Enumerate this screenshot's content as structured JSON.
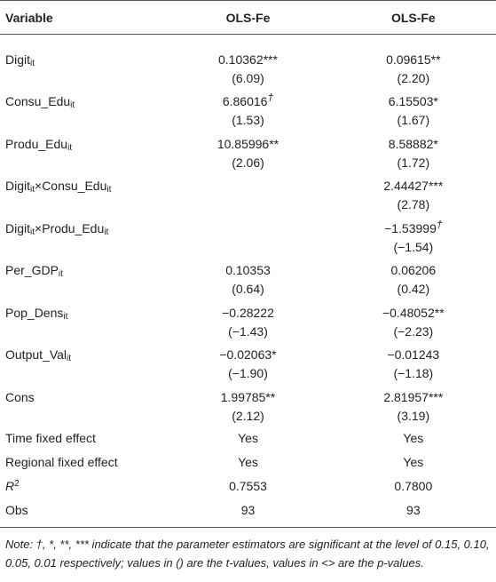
{
  "table": {
    "columns": [
      "Variable",
      "OLS-Fe",
      "OLS-Fe"
    ],
    "rows": [
      {
        "label": [
          {
            "t": "Digit",
            "sub": "it"
          }
        ],
        "c1": {
          "coef": "0.10362",
          "sig": "***",
          "t": "(6.09)"
        },
        "c2": {
          "coef": "0.09615",
          "sig": "**",
          "t": "(2.20)"
        }
      },
      {
        "label": [
          {
            "t": "Consu_Edu",
            "sub": "it"
          }
        ],
        "c1": {
          "coef": "6.86016",
          "dag": "†",
          "t": "(1.53)"
        },
        "c2": {
          "coef": "6.15503",
          "sig": "*",
          "t": "(1.67)"
        }
      },
      {
        "label": [
          {
            "t": "Produ_Edu",
            "sub": "it"
          }
        ],
        "c1": {
          "coef": "10.85996",
          "sig": "**",
          "t": "(2.06)"
        },
        "c2": {
          "coef": "8.58882",
          "sig": "*",
          "t": "(1.72)"
        }
      },
      {
        "label": [
          {
            "t": "Digit",
            "sub": "it"
          },
          {
            "t": "×Consu_Edu",
            "sub": "it"
          }
        ],
        "c1": null,
        "c2": {
          "coef": "2.44427",
          "sig": "***",
          "t": "(2.78)"
        }
      },
      {
        "label": [
          {
            "t": "Digit",
            "sub": "it"
          },
          {
            "t": "×Produ_Edu",
            "sub": "it"
          }
        ],
        "c1": null,
        "c2": {
          "coef": "−1.53999",
          "dag": "†",
          "t": "(−1.54)"
        }
      },
      {
        "label": [
          {
            "t": "Per_GDP",
            "sub": "it"
          }
        ],
        "c1": {
          "coef": "0.10353",
          "t": "(0.64)"
        },
        "c2": {
          "coef": "0.06206",
          "t": "(0.42)"
        }
      },
      {
        "label": [
          {
            "t": "Pop_Dens",
            "sub": "it"
          }
        ],
        "c1": {
          "coef": "−0.28222",
          "t": "(−1.43)"
        },
        "c2": {
          "coef": "−0.48052",
          "sig": "**",
          "t": "(−2.23)"
        }
      },
      {
        "label": [
          {
            "t": "Output_Val",
            "sub": "it"
          }
        ],
        "c1": {
          "coef": "−0.02063",
          "sig": "*",
          "t": "(−1.90)"
        },
        "c2": {
          "coef": "−0.01243",
          "t": "(−1.18)"
        }
      },
      {
        "label": [
          {
            "t": "Cons"
          }
        ],
        "c1": {
          "coef": "1.99785",
          "sig": "**",
          "t": "(2.12)"
        },
        "c2": {
          "coef": "2.81957",
          "sig": "***",
          "t": "(3.19)"
        }
      },
      {
        "label": [
          {
            "t": "Time fixed effect"
          }
        ],
        "c1": {
          "coef": "Yes"
        },
        "c2": {
          "coef": "Yes"
        }
      },
      {
        "label": [
          {
            "t": "Regional fixed effect"
          }
        ],
        "c1": {
          "coef": "Yes"
        },
        "c2": {
          "coef": "Yes"
        }
      },
      {
        "label": [
          {
            "t": "R",
            "sup": "2",
            "italic": true
          }
        ],
        "c1": {
          "coef": "0.7553"
        },
        "c2": {
          "coef": "0.7800"
        }
      },
      {
        "label": [
          {
            "t": "Obs"
          }
        ],
        "c1": {
          "coef": "93"
        },
        "c2": {
          "coef": "93"
        }
      }
    ],
    "note": "Note: †, *, **, *** indicate that the parameter estimators are significant at the level of 0.15, 0.10, 0.05, 0.01 respectively; values in () are the t-values, values in <> are the p-values."
  }
}
